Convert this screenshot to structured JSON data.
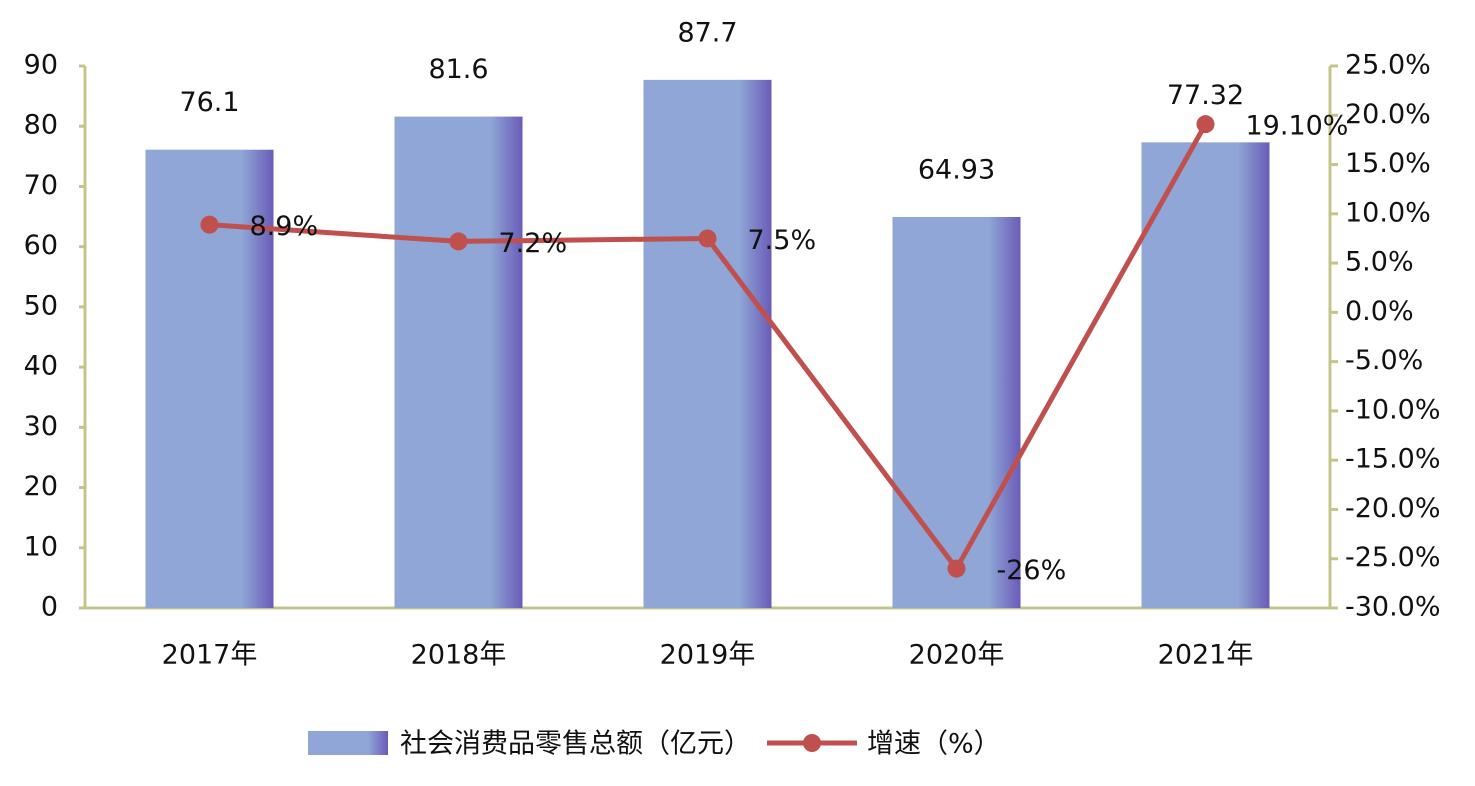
{
  "chart_data": {
    "type": "bar-line",
    "categories": [
      "2017年",
      "2018年",
      "2019年",
      "2020年",
      "2021年"
    ],
    "series": [
      {
        "name": "社会消费品零售总额（亿元）",
        "type": "bar",
        "color": "#8fa6d6",
        "values": [
          76.1,
          81.6,
          87.7,
          64.93,
          77.32
        ]
      },
      {
        "name": "增速（%）",
        "type": "line",
        "axis": "y2",
        "color": "#c0504d",
        "values": [
          8.9,
          7.2,
          7.5,
          -26,
          19.1
        ],
        "value_labels": [
          "8.9%",
          "7.2%",
          "7.5%",
          "-26%",
          "19.10%"
        ]
      }
    ],
    "ylim": [
      0,
      90
    ],
    "yticks": [
      0,
      10,
      20,
      30,
      40,
      50,
      60,
      70,
      80,
      90
    ],
    "y2lim": [
      -30,
      25
    ],
    "y2ticks": [
      {
        "value": -30,
        "label": "-30.0%"
      },
      {
        "value": -25,
        "label": "-25.0%"
      },
      {
        "value": -20,
        "label": "-20.0%"
      },
      {
        "value": -15,
        "label": "-15.0%"
      },
      {
        "value": -10,
        "label": "-10.0%"
      },
      {
        "value": -5,
        "label": "-5.0%"
      },
      {
        "value": 0,
        "label": "0.0%"
      },
      {
        "value": 5,
        "label": "5.0%"
      },
      {
        "value": 10,
        "label": "10.0%"
      },
      {
        "value": 15,
        "label": "15.0%"
      },
      {
        "value": 20,
        "label": "20.0%"
      },
      {
        "value": 25,
        "label": "25.0%"
      }
    ],
    "legend": "bottom"
  }
}
